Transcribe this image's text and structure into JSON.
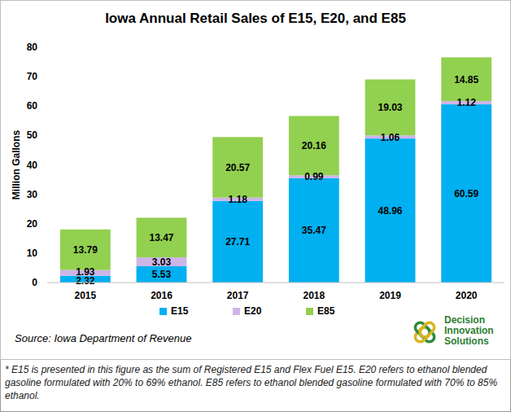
{
  "chart_data": {
    "type": "bar",
    "stacked": true,
    "title": "Iowa Annual Retail Sales of E15, E20, and E85",
    "y_label": "Million Gallons",
    "categories": [
      "2015",
      "2016",
      "2017",
      "2018",
      "2019",
      "2020"
    ],
    "series": [
      {
        "name": "E15",
        "color": "#00B0F0",
        "values": [
          2.32,
          5.53,
          27.71,
          35.47,
          48.96,
          60.59
        ]
      },
      {
        "name": "E20",
        "color": "#CDB5E8",
        "values": [
          1.93,
          3.03,
          1.18,
          0.99,
          1.06,
          1.12
        ]
      },
      {
        "name": "E85",
        "color": "#92D050",
        "values": [
          13.79,
          13.47,
          20.57,
          20.16,
          19.03,
          14.85
        ]
      }
    ],
    "ylim": [
      0,
      80
    ],
    "yticks": [
      0,
      10,
      20,
      30,
      40,
      50,
      60,
      70,
      80
    ],
    "grid": false,
    "legend": "bottom",
    "data_labels": true,
    "source": "Source: Iowa Department of Revenue",
    "logo": [
      "Decision",
      "Innovation",
      "Solutions"
    ],
    "footnote": "* E15 is presented in this figure as the sum of Registered E15 and Flex Fuel E15.  E20 refers to ethanol blended gasoline formulated with 20% to 69% ethanol. E85 refers to ethanol blended gasoline formulated with 70% to 85% ethanol."
  }
}
